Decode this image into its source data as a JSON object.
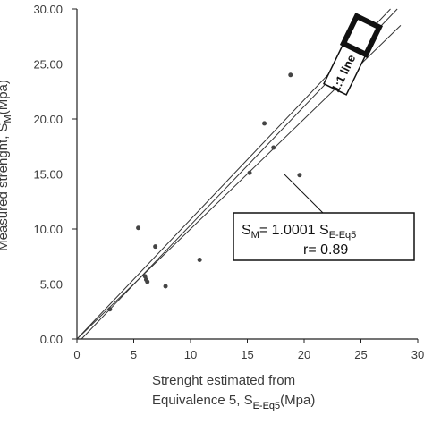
{
  "chart_data": {
    "type": "scatter",
    "title": "",
    "xlabel_line1": "Strenght estimated from",
    "xlabel_line2": "Equivalence 5, S",
    "xlabel_sub": "E-Eq5",
    "xlabel_unit": "(Mpa)",
    "ylabel": "Measured strenght, S",
    "ylabel_sub": "M",
    "ylabel_unit": "(Mpa)",
    "xlim": [
      0,
      30
    ],
    "ylim": [
      0,
      30
    ],
    "x_ticks": [
      "0",
      "5",
      "10",
      "15",
      "20",
      "25",
      "30"
    ],
    "y_ticks": [
      "0.00",
      "5.00",
      "10.00",
      "15.00",
      "20.00",
      "25.00",
      "30.00"
    ],
    "points": [
      {
        "x": 2.9,
        "y": 2.7
      },
      {
        "x": 5.4,
        "y": 10.1
      },
      {
        "x": 6.0,
        "y": 5.7
      },
      {
        "x": 6.1,
        "y": 5.4
      },
      {
        "x": 6.2,
        "y": 5.2
      },
      {
        "x": 6.9,
        "y": 8.4
      },
      {
        "x": 7.8,
        "y": 4.8
      },
      {
        "x": 10.8,
        "y": 7.2
      },
      {
        "x": 15.2,
        "y": 15.1
      },
      {
        "x": 16.5,
        "y": 19.6
      },
      {
        "x": 17.3,
        "y": 17.4
      },
      {
        "x": 18.8,
        "y": 24.0
      },
      {
        "x": 19.6,
        "y": 14.9
      }
    ],
    "fit_line": {
      "slope": 1.0001,
      "label": "1:1 line"
    },
    "equation_label": {
      "lead": "S",
      "lead_sub": "M",
      "eq": "= 1.0001 S",
      "eq_sub": "E-Eq5",
      "r": "r= 0.89"
    },
    "grid": false,
    "legend": "none"
  }
}
